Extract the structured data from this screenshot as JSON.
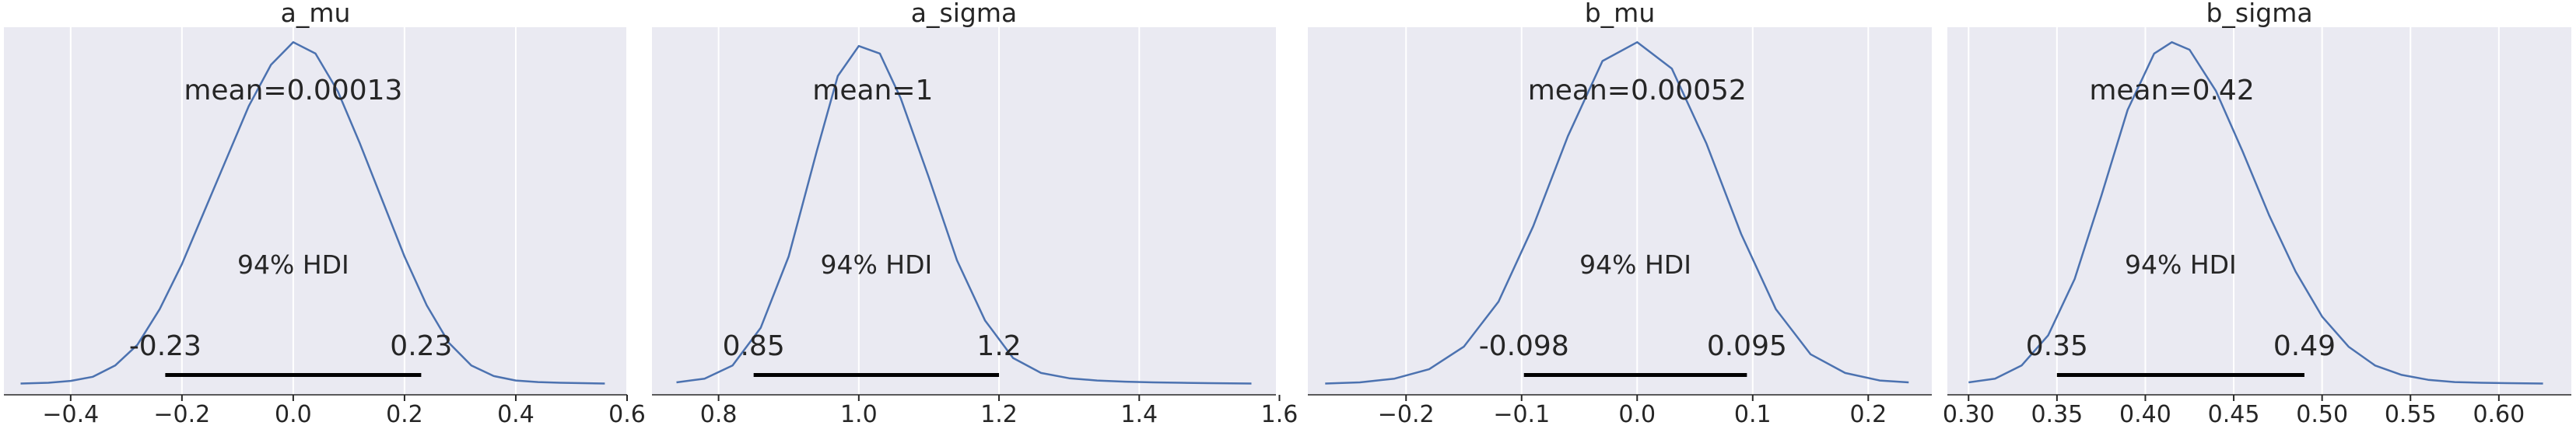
{
  "chart_data": [
    {
      "type": "line",
      "title": "a_mu",
      "kde": {
        "x": [
          -0.49,
          -0.44,
          -0.4,
          -0.36,
          -0.32,
          -0.28,
          -0.24,
          -0.2,
          -0.16,
          -0.12,
          -0.08,
          -0.04,
          0.0,
          0.04,
          0.08,
          0.12,
          0.16,
          0.2,
          0.24,
          0.28,
          0.32,
          0.36,
          0.4,
          0.44,
          0.48,
          0.52,
          0.56
        ],
        "y": [
          0.2,
          0.4,
          0.9,
          2.0,
          5.0,
          10.5,
          20.0,
          32.0,
          46.0,
          60.0,
          74.0,
          85.0,
          91.0,
          88.0,
          78.0,
          64.0,
          49.0,
          34.0,
          21.0,
          11.0,
          5.0,
          2.2,
          1.0,
          0.6,
          0.4,
          0.3,
          0.2
        ]
      },
      "xlim": [
        -0.52,
        0.6
      ],
      "ylim": [
        -2.8,
        95.0
      ],
      "xticks": [
        -0.4,
        -0.2,
        0.0,
        0.2,
        0.4,
        0.6
      ],
      "xtick_labels": [
        "−0.4",
        "−0.2",
        "0.0",
        "0.2",
        "0.4",
        "0.6"
      ],
      "mean_label": "mean=0.00013",
      "mean_label_x": 0.0,
      "hdi_label": "94% HDI",
      "hdi": [
        -0.23,
        0.23
      ],
      "hdi_labels": [
        "-0.23",
        "0.23"
      ]
    },
    {
      "type": "line",
      "title": "a_sigma",
      "kde": {
        "x": [
          0.74,
          0.78,
          0.82,
          0.86,
          0.9,
          0.94,
          0.97,
          1.0,
          1.03,
          1.06,
          1.1,
          1.14,
          1.18,
          1.22,
          1.26,
          1.3,
          1.34,
          1.38,
          1.42,
          1.46,
          1.5,
          1.56
        ],
        "y": [
          0.5,
          1.5,
          5.0,
          15.0,
          34.0,
          62.0,
          82.0,
          90.0,
          88.0,
          76.0,
          55.0,
          33.0,
          17.0,
          7.0,
          3.0,
          1.6,
          1.0,
          0.7,
          0.5,
          0.4,
          0.3,
          0.2
        ]
      },
      "xlim": [
        0.705,
        1.595
      ],
      "ylim": [
        -2.8,
        95.0
      ],
      "xticks": [
        0.8,
        1.0,
        1.2,
        1.4,
        1.6
      ],
      "xtick_labels": [
        "0.8",
        "1.0",
        "1.2",
        "1.4",
        "1.6"
      ],
      "mean_label": "mean=1",
      "mean_label_x": 1.02,
      "hdi_label": "94% HDI",
      "hdi": [
        0.85,
        1.2
      ],
      "hdi_labels": [
        "0.85",
        "1.2"
      ]
    },
    {
      "type": "line",
      "title": "b_mu",
      "kde": {
        "x": [
          -0.27,
          -0.24,
          -0.21,
          -0.18,
          -0.15,
          -0.12,
          -0.09,
          -0.06,
          -0.03,
          0.0,
          0.03,
          0.06,
          0.09,
          0.12,
          0.15,
          0.18,
          0.21,
          0.235
        ],
        "y": [
          0.2,
          0.5,
          1.5,
          4.0,
          10.0,
          22.0,
          42.0,
          66.0,
          86.0,
          91.0,
          84.0,
          64.0,
          40.0,
          20.0,
          8.0,
          3.0,
          1.0,
          0.5
        ]
      },
      "xlim": [
        -0.285,
        0.255
      ],
      "ylim": [
        -2.8,
        95.0
      ],
      "xticks": [
        -0.2,
        -0.1,
        0.0,
        0.1,
        0.2
      ],
      "xtick_labels": [
        "−0.2",
        "−0.1",
        "0.0",
        "0.1",
        "0.2"
      ],
      "mean_label": "mean=0.00052",
      "mean_label_x": 0.0,
      "hdi_label": "94% HDI",
      "hdi": [
        -0.098,
        0.095
      ],
      "hdi_labels": [
        "-0.098",
        "0.095"
      ]
    },
    {
      "type": "line",
      "title": "b_sigma",
      "kde": {
        "x": [
          0.3,
          0.315,
          0.33,
          0.345,
          0.36,
          0.375,
          0.39,
          0.405,
          0.415,
          0.425,
          0.44,
          0.455,
          0.47,
          0.485,
          0.5,
          0.515,
          0.53,
          0.545,
          0.56,
          0.575,
          0.59,
          0.605,
          0.625
        ],
        "y": [
          0.5,
          1.5,
          5.0,
          13.0,
          28.0,
          50.0,
          73.0,
          88.0,
          91.0,
          89.0,
          78.0,
          62.0,
          45.0,
          30.0,
          18.0,
          10.0,
          5.0,
          2.5,
          1.2,
          0.6,
          0.4,
          0.3,
          0.2
        ]
      },
      "xlim": [
        0.288,
        0.641
      ],
      "ylim": [
        -2.8,
        95.0
      ],
      "xticks": [
        0.3,
        0.35,
        0.4,
        0.45,
        0.5,
        0.55,
        0.6
      ],
      "xtick_labels": [
        "0.30",
        "0.35",
        "0.40",
        "0.45",
        "0.50",
        "0.55",
        "0.60"
      ],
      "mean_label": "mean=0.42",
      "mean_label_x": 0.415,
      "hdi_label": "94% HDI",
      "hdi": [
        0.35,
        0.49
      ],
      "hdi_labels": [
        "0.35",
        "0.49"
      ]
    }
  ],
  "style": {
    "background": "#eaeaf2",
    "grid_color": "#ffffff",
    "line_color": "#4c72b0",
    "hdi_color": "#000000",
    "text_color": "#262626"
  }
}
